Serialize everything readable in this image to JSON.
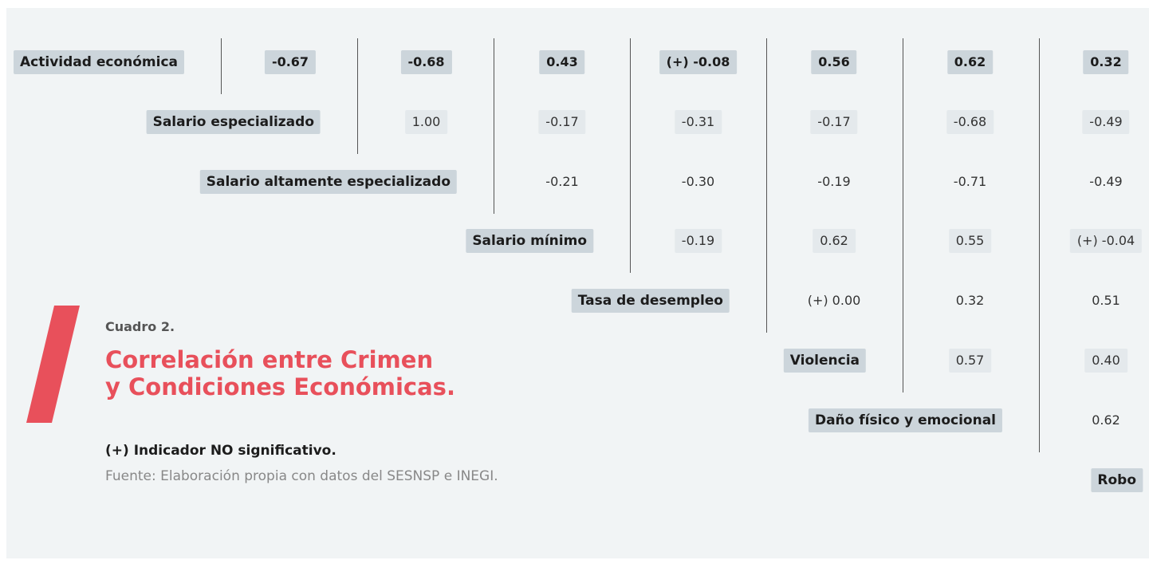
{
  "title": {
    "label": "Cuadro 2.",
    "line1": "Correlación entre Crimen",
    "line2": "y Condiciones Económicas."
  },
  "note": "(+) Indicador NO significativo.",
  "source": "Fuente: Elaboración propia con datos del SESNSP e INEGI.",
  "rows": [
    {
      "label": "Actividad económica",
      "values": [
        "-0.67",
        "-0.68",
        "0.43",
        "(+) -0.08",
        "0.56",
        "0.62",
        "0.32"
      ]
    },
    {
      "label": "Salario especializado",
      "values": [
        "1.00",
        "-0.17",
        "-0.31",
        "-0.17",
        "-0.68",
        "-0.49"
      ]
    },
    {
      "label": "Salario altamente especializado",
      "values": [
        "-0.21",
        "-0.30",
        "-0.19",
        "-0.71",
        "-0.49"
      ]
    },
    {
      "label": "Salario mínimo",
      "values": [
        "-0.19",
        "0.62",
        "0.55",
        "(+) -0.04"
      ]
    },
    {
      "label": "Tasa de desempleo",
      "values": [
        "(+) 0.00",
        "0.32",
        "0.51"
      ]
    },
    {
      "label": "Violencia",
      "values": [
        "0.57",
        "0.40"
      ]
    },
    {
      "label": "Daño físico y emocional",
      "values": [
        "0.62"
      ]
    },
    {
      "label": "Robo",
      "values": []
    }
  ]
}
